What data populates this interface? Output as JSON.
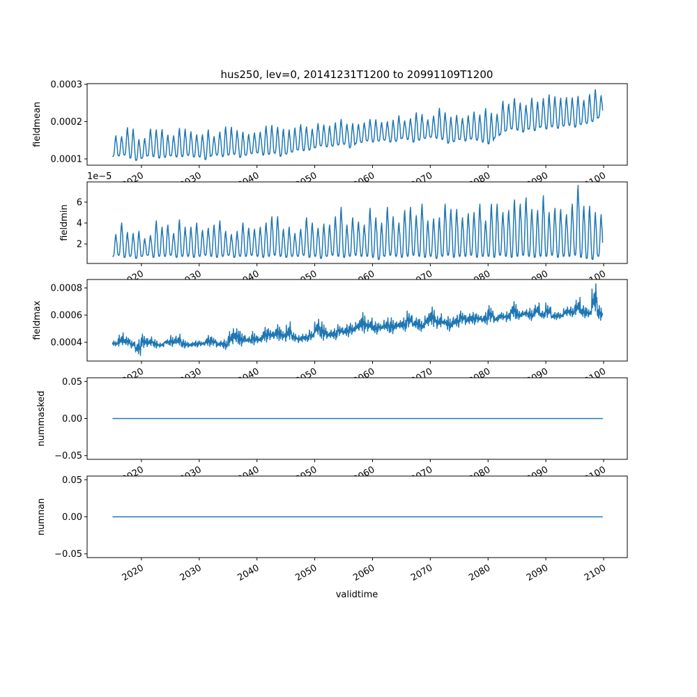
{
  "title": "hus250, lev=0, 20141231T1200 to 20991109T1200",
  "xlabel": "validtime",
  "x_ticks": [
    "2020",
    "2030",
    "2040",
    "2050",
    "2060",
    "2070",
    "2080",
    "2090",
    "2100"
  ],
  "line_color": "#1f77b4",
  "chart_data": [
    {
      "type": "line",
      "name": "fieldmean",
      "ylabel": "fieldmean",
      "xlim": [
        2010.6,
        2104.1
      ],
      "x_range": [
        2014.997,
        2099.86
      ],
      "ylim": [
        8.32e-05,
        0.0003019
      ],
      "y_ticks": [
        {
          "v": 0.0001,
          "label": "0.0001"
        },
        {
          "v": 0.0002,
          "label": "0.0002"
        },
        {
          "v": 0.0003,
          "label": "0.0003"
        }
      ],
      "offset_label": "",
      "unit_scale": 0.0001,
      "form": "seasonal",
      "years_start": 2015,
      "annual_max": [
        1.62,
        1.6,
        1.84,
        1.8,
        1.52,
        1.55,
        1.8,
        1.78,
        1.79,
        1.64,
        1.62,
        1.82,
        1.8,
        1.73,
        1.65,
        1.65,
        1.78,
        1.6,
        1.72,
        1.86,
        1.85,
        1.76,
        1.72,
        1.66,
        1.7,
        1.72,
        1.88,
        1.9,
        1.85,
        1.8,
        1.78,
        1.83,
        1.92,
        1.86,
        1.8,
        1.95,
        1.91,
        1.88,
        1.97,
        2.06,
        1.93,
        1.95,
        1.93,
        1.97,
        2.06,
        2.05,
        1.98,
        2.0,
        2.04,
        2.16,
        2.02,
        2.08,
        2.24,
        2.19,
        2.05,
        2.15,
        2.36,
        2.24,
        2.12,
        2.17,
        2.09,
        2.16,
        2.26,
        2.18,
        2.35,
        2.23,
        2.2,
        2.55,
        2.47,
        2.62,
        2.5,
        2.44,
        2.63,
        2.53,
        2.62,
        2.72,
        2.67,
        2.63,
        2.65,
        2.64,
        2.68,
        2.57,
        2.73,
        2.86,
        2.7
      ],
      "annual_min": [
        1.07,
        1.08,
        1.1,
        1.02,
        0.96,
        1.02,
        1.08,
        1.06,
        1.02,
        1.04,
        1.08,
        1.05,
        1.06,
        1.09,
        1.05,
        1.05,
        0.98,
        1.08,
        1.1,
        1.06,
        1.1,
        1.12,
        1.04,
        1.1,
        1.14,
        1.16,
        1.1,
        1.12,
        1.15,
        1.07,
        1.13,
        1.18,
        1.24,
        1.22,
        1.24,
        1.3,
        1.35,
        1.32,
        1.34,
        1.37,
        1.39,
        1.3,
        1.41,
        1.44,
        1.48,
        1.45,
        1.48,
        1.5,
        1.45,
        1.47,
        1.55,
        1.52,
        1.45,
        1.5,
        1.55,
        1.58,
        1.55,
        1.52,
        1.42,
        1.46,
        1.52,
        1.48,
        1.53,
        1.5,
        1.45,
        1.4,
        1.55,
        1.65,
        1.75,
        1.8,
        1.77,
        1.72,
        1.8,
        1.76,
        1.85,
        1.8,
        1.86,
        1.82,
        1.88,
        1.9,
        1.85,
        1.92,
        1.95,
        2.0,
        2.1
      ]
    },
    {
      "type": "line",
      "name": "fieldmin",
      "ylabel": "fieldmin",
      "xlim": [
        2010.6,
        2104.1
      ],
      "x_range": [
        2014.997,
        2099.86
      ],
      "ylim": [
        0.13,
        7.93
      ],
      "y_ticks": [
        {
          "v": 2,
          "label": "2"
        },
        {
          "v": 4,
          "label": "4"
        },
        {
          "v": 6,
          "label": "6"
        }
      ],
      "offset_label": "1e−5",
      "unit_scale": 1,
      "form": "seasonal",
      "years_start": 2015,
      "annual_max": [
        2.9,
        4.0,
        3.1,
        3.0,
        3.2,
        2.5,
        2.8,
        4.2,
        3.6,
        3.8,
        3.0,
        4.3,
        3.6,
        3.6,
        4.0,
        3.3,
        3.5,
        3.8,
        4.2,
        3.2,
        2.9,
        3.2,
        4.0,
        3.5,
        3.4,
        3.6,
        4.0,
        4.6,
        4.6,
        3.4,
        3.6,
        3.0,
        3.4,
        4.5,
        4.0,
        3.5,
        3.9,
        3.8,
        4.6,
        5.5,
        3.8,
        4.5,
        4.1,
        3.8,
        5.4,
        4.5,
        4.0,
        5.5,
        4.6,
        4.0,
        5.2,
        5.5,
        4.7,
        5.8,
        4.2,
        4.4,
        4.5,
        5.8,
        5.3,
        5.3,
        4.5,
        4.9,
        5.0,
        5.8,
        4.2,
        5.8,
        5.8,
        5.0,
        5.2,
        6.2,
        5.8,
        6.4,
        5.3,
        5.2,
        6.6,
        5.0,
        5.4,
        5.3,
        4.8,
        5.8,
        7.6,
        5.6,
        5.6,
        5.0,
        4.8
      ],
      "annual_min": [
        0.8,
        0.9,
        0.7,
        0.8,
        0.6,
        0.8,
        0.9,
        0.7,
        0.8,
        0.8,
        0.9,
        0.7,
        0.8,
        0.8,
        0.7,
        0.8,
        0.9,
        0.8,
        0.7,
        0.8,
        0.9,
        0.7,
        0.8,
        0.8,
        0.9,
        0.8,
        0.7,
        0.8,
        0.9,
        0.8,
        0.7,
        0.8,
        0.8,
        0.9,
        0.7,
        0.8,
        0.6,
        0.8,
        0.9,
        0.8,
        0.7,
        0.8,
        0.9,
        0.8,
        0.8,
        0.7,
        0.5,
        0.8,
        0.9,
        0.8,
        0.7,
        0.8,
        0.9,
        0.8,
        0.7,
        0.8,
        0.6,
        0.8,
        0.9,
        0.7,
        0.8,
        0.8,
        0.9,
        0.7,
        0.8,
        0.8,
        0.7,
        0.9,
        0.8,
        0.7,
        0.8,
        0.9,
        0.8,
        0.7,
        0.8,
        0.8,
        0.9,
        0.7,
        0.8,
        0.8,
        0.9,
        0.7,
        0.6,
        0.5,
        0.8
      ]
    },
    {
      "type": "line",
      "name": "fieldmax",
      "ylabel": "fieldmax",
      "xlim": [
        2010.6,
        2104.1
      ],
      "x_range": [
        2014.997,
        2099.86
      ],
      "ylim": [
        0.000262,
        0.000862
      ],
      "y_ticks": [
        {
          "v": 0.0004,
          "label": "0.0004"
        },
        {
          "v": 0.0006,
          "label": "0.0006"
        },
        {
          "v": 0.0008,
          "label": "0.0008"
        }
      ],
      "offset_label": "",
      "unit_scale": 0.0001,
      "form": "noisy",
      "years_start": 2015,
      "annual_max": [
        4.1,
        4.7,
        4.4,
        4.2,
        4.2,
        4.6,
        4.4,
        4.2,
        4.0,
        4.2,
        4.5,
        4.6,
        4.2,
        4.0,
        4.1,
        4.1,
        4.5,
        4.4,
        4.1,
        4.2,
        5.0,
        5.0,
        4.8,
        4.4,
        4.8,
        4.5,
        5.1,
        5.0,
        5.3,
        4.9,
        5.5,
        4.7,
        4.6,
        4.6,
        4.9,
        5.7,
        5.5,
        4.9,
        5.0,
        5.3,
        5.3,
        5.4,
        5.6,
        6.2,
        5.8,
        5.5,
        5.4,
        5.8,
        5.8,
        5.6,
        5.8,
        6.3,
        5.8,
        5.7,
        6.1,
        6.6,
        6.1,
        5.7,
        5.9,
        6.0,
        6.3,
        6.1,
        6.2,
        6.1,
        6.2,
        6.7,
        6.0,
        6.2,
        6.4,
        7.0,
        6.4,
        6.4,
        6.5,
        6.9,
        6.3,
        6.9,
        6.2,
        6.2,
        6.6,
        6.6,
        7.3,
        6.7,
        6.5,
        8.3,
        6.7
      ],
      "annual_min": [
        3.7,
        3.6,
        3.7,
        3.5,
        2.9,
        3.5,
        3.6,
        3.5,
        3.6,
        3.8,
        3.6,
        3.6,
        3.5,
        3.6,
        3.6,
        3.7,
        3.6,
        3.7,
        3.6,
        3.4,
        3.6,
        3.8,
        3.6,
        3.9,
        3.7,
        3.9,
        3.9,
        4.1,
        4.0,
        4.1,
        3.9,
        4.0,
        3.9,
        4.0,
        4.1,
        4.3,
        4.0,
        4.2,
        4.1,
        4.4,
        4.3,
        4.5,
        4.7,
        4.5,
        4.7,
        4.5,
        4.8,
        4.6,
        4.5,
        4.9,
        4.7,
        5.0,
        4.9,
        4.7,
        5.0,
        5.0,
        4.9,
        5.2,
        4.7,
        5.0,
        5.3,
        5.2,
        5.2,
        5.4,
        5.2,
        5.4,
        5.4,
        5.6,
        5.4,
        5.6,
        5.6,
        5.8,
        5.5,
        5.8,
        5.7,
        5.7,
        5.6,
        5.7,
        5.8,
        5.8,
        5.9,
        5.7,
        5.8,
        5.8,
        5.5
      ]
    },
    {
      "type": "line",
      "name": "nummasked",
      "ylabel": "nummasked",
      "xlim": [
        2010.6,
        2104.1
      ],
      "x_range": [
        2014.997,
        2099.86
      ],
      "ylim": [
        -0.055,
        0.055
      ],
      "y_ticks": [
        {
          "v": -0.05,
          "label": "−0.05"
        },
        {
          "v": 0,
          "label": "0.00"
        },
        {
          "v": 0.05,
          "label": "0.05"
        }
      ],
      "offset_label": "",
      "form": "constant",
      "value": 0
    },
    {
      "type": "line",
      "name": "numnan",
      "ylabel": "numnan",
      "xlim": [
        2010.6,
        2104.1
      ],
      "x_range": [
        2014.997,
        2099.86
      ],
      "ylim": [
        -0.055,
        0.055
      ],
      "y_ticks": [
        {
          "v": -0.05,
          "label": "−0.05"
        },
        {
          "v": 0,
          "label": "0.00"
        },
        {
          "v": 0.05,
          "label": "0.05"
        }
      ],
      "offset_label": "",
      "form": "constant",
      "value": 0
    }
  ]
}
